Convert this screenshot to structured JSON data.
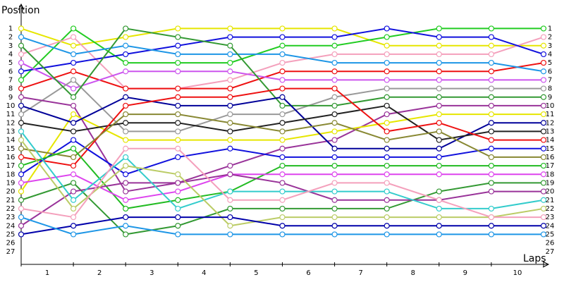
{
  "chart_data": {
    "type": "line",
    "ylabel": "Position",
    "xlabel": "Laps",
    "x": [
      0,
      1,
      2,
      3,
      4,
      5,
      6,
      7,
      8,
      9,
      10
    ],
    "xlim": [
      0,
      10
    ],
    "xticks": [
      {
        "value": 0.5,
        "label": "1"
      },
      {
        "value": 1.5,
        "label": "2"
      },
      {
        "value": 2.5,
        "label": "3"
      },
      {
        "value": 3.5,
        "label": "4"
      },
      {
        "value": 4.5,
        "label": "5"
      },
      {
        "value": 5.5,
        "label": "6"
      },
      {
        "value": 6.5,
        "label": "7"
      },
      {
        "value": 7.5,
        "label": "8"
      },
      {
        "value": 8.5,
        "label": "9"
      },
      {
        "value": 9.5,
        "label": "10"
      }
    ],
    "ylim": [
      28.5,
      -1.5
    ],
    "yticks": [
      1,
      2,
      3,
      4,
      5,
      6,
      7,
      8,
      9,
      10,
      11,
      12,
      13,
      14,
      15,
      16,
      17,
      18,
      19,
      20,
      21,
      22,
      23,
      24,
      25,
      26,
      27
    ],
    "grid": false,
    "series": [
      {
        "color": "#e6e600",
        "values": [
          1,
          3,
          2,
          1,
          1,
          1,
          1,
          3,
          3,
          3,
          3
        ]
      },
      {
        "color": "#22cc22",
        "values": [
          7,
          1,
          5,
          5,
          5,
          3,
          3,
          2,
          1,
          1,
          1
        ]
      },
      {
        "color": "#f4a0bc",
        "values": [
          4,
          2,
          8,
          8,
          7,
          5,
          4,
          4,
          4,
          4,
          2
        ]
      },
      {
        "color": "#1111dd",
        "values": [
          6,
          5,
          4,
          3,
          2,
          2,
          2,
          1,
          2,
          2,
          4
        ]
      },
      {
        "color": "#ee1111",
        "values": [
          8,
          6,
          8,
          8,
          8,
          6,
          6,
          6,
          6,
          6,
          5
        ]
      },
      {
        "color": "#1e96e6",
        "values": [
          2,
          4,
          3,
          4,
          4,
          4,
          5,
          5,
          5,
          5,
          6
        ]
      },
      {
        "color": "#cc55ee",
        "values": [
          5,
          8,
          6,
          6,
          6,
          7,
          7,
          7,
          7,
          7,
          7
        ]
      },
      {
        "color": "#999999",
        "values": [
          11,
          7,
          13,
          13,
          11,
          11,
          9,
          8,
          8,
          8,
          8
        ]
      },
      {
        "color": "#339933",
        "values": [
          3,
          9,
          1,
          2,
          3,
          10,
          10,
          9,
          9,
          9,
          9
        ]
      },
      {
        "color": "#993399",
        "values": [
          9,
          10,
          20,
          19,
          17,
          15,
          14,
          11,
          10,
          10,
          10
        ]
      },
      {
        "color": "#e6e600",
        "values": [
          20,
          11,
          14,
          14,
          14,
          14,
          13,
          12,
          11,
          11,
          11
        ]
      },
      {
        "color": "#000099",
        "values": [
          10,
          12,
          9,
          10,
          10,
          9,
          15,
          15,
          15,
          12,
          12
        ]
      },
      {
        "color": "#222222",
        "values": [
          12,
          13,
          12,
          12,
          13,
          12,
          11,
          10,
          14,
          13,
          13
        ]
      },
      {
        "color": "#ee1111",
        "values": [
          16,
          17,
          10,
          9,
          9,
          8,
          8,
          13,
          12,
          14,
          14
        ]
      },
      {
        "color": "#1111dd",
        "values": [
          18,
          14,
          18,
          16,
          15,
          16,
          16,
          16,
          16,
          15,
          15
        ]
      },
      {
        "color": "#888833",
        "values": [
          15,
          16,
          11,
          11,
          12,
          13,
          12,
          14,
          13,
          16,
          16
        ]
      },
      {
        "color": "#22bb22",
        "values": [
          17,
          15,
          22,
          21,
          20,
          17,
          17,
          17,
          17,
          17,
          17
        ]
      },
      {
        "color": "#dd44ee",
        "values": [
          19,
          18,
          21,
          20,
          18,
          18,
          18,
          18,
          18,
          18,
          18
        ]
      },
      {
        "color": "#339933",
        "values": [
          21,
          19,
          25,
          24,
          22,
          22,
          22,
          22,
          20,
          19,
          19
        ]
      },
      {
        "color": "#993399",
        "values": [
          24,
          20,
          19,
          19,
          18,
          19,
          21,
          21,
          21,
          20,
          20
        ]
      },
      {
        "color": "#33cccc",
        "values": [
          13,
          21,
          16,
          22,
          20,
          20,
          20,
          20,
          22,
          22,
          21
        ]
      },
      {
        "color": "#bbcc66",
        "values": [
          14,
          22,
          17,
          18,
          24,
          23,
          23,
          23,
          23,
          23,
          22
        ]
      },
      {
        "color": "#f4a0bc",
        "values": [
          22,
          23,
          15,
          15,
          21,
          21,
          19,
          19,
          21,
          23,
          23
        ]
      },
      {
        "color": "#0000aa",
        "values": [
          25,
          24,
          23,
          23,
          23,
          24,
          24,
          24,
          24,
          24,
          24
        ]
      },
      {
        "color": "#1e96e6",
        "values": [
          23,
          25,
          24,
          25,
          25,
          25,
          25,
          25,
          25,
          25,
          25
        ]
      }
    ]
  }
}
